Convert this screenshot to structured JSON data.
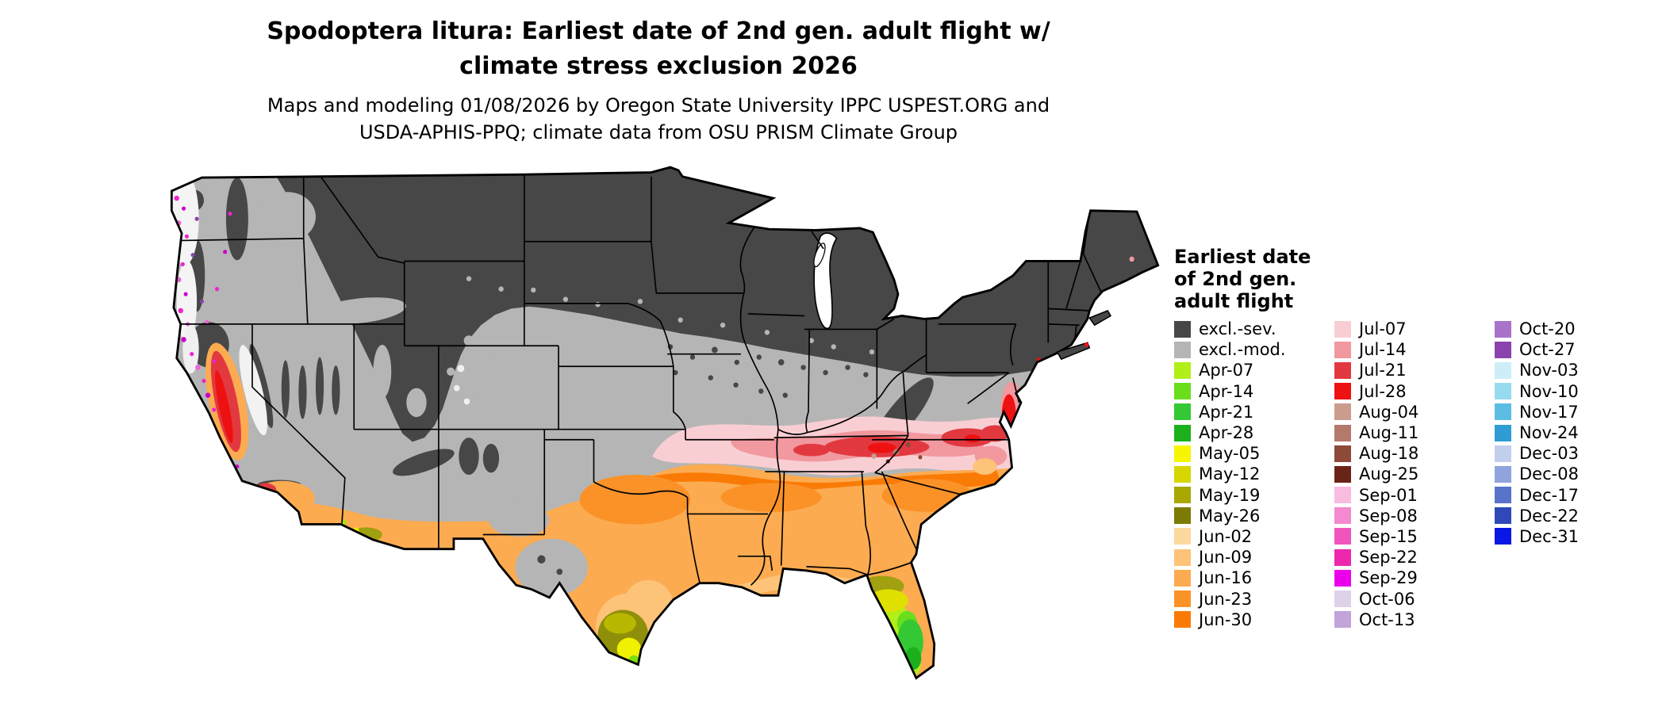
{
  "title": {
    "line1": "Spodoptera litura: Earliest date of 2nd gen. adult flight w/",
    "line2": "climate stress exclusion 2026"
  },
  "subtitle": {
    "line1": "Maps and modeling 01/08/2026 by Oregon State University IPPC USPEST.ORG and",
    "line2": "USDA-APHIS-PPQ; climate data from OSU PRISM Climate Group"
  },
  "map": {
    "region": "Conterminous United States",
    "kind": "raster model output with state boundaries"
  },
  "legend": {
    "title_lines": [
      "Earliest date",
      "of 2nd gen.",
      "adult flight"
    ],
    "columns": [
      {
        "items": [
          {
            "label": "excl.-sev.",
            "color": "#474747"
          },
          {
            "label": "excl.-mod.",
            "color": "#b5b5b5"
          },
          {
            "label": "Apr-07",
            "color": "#b2ee18"
          },
          {
            "label": "Apr-14",
            "color": "#6ade1c"
          },
          {
            "label": "Apr-21",
            "color": "#34c934"
          },
          {
            "label": "Apr-28",
            "color": "#1cb01c"
          },
          {
            "label": "May-05",
            "color": "#f6f600"
          },
          {
            "label": "May-12",
            "color": "#d6d600"
          },
          {
            "label": "May-19",
            "color": "#a8a800"
          },
          {
            "label": "May-26",
            "color": "#7c7c04"
          },
          {
            "label": "Jun-02",
            "color": "#fdd9a0"
          },
          {
            "label": "Jun-09",
            "color": "#fdc378"
          },
          {
            "label": "Jun-16",
            "color": "#fcab50"
          },
          {
            "label": "Jun-23",
            "color": "#fb9228"
          },
          {
            "label": "Jun-30",
            "color": "#f97b06"
          }
        ]
      },
      {
        "items": [
          {
            "label": "Jul-07",
            "color": "#f9ced3"
          },
          {
            "label": "Jul-14",
            "color": "#f2989f"
          },
          {
            "label": "Jul-21",
            "color": "#e23940"
          },
          {
            "label": "Jul-28",
            "color": "#ee1111"
          },
          {
            "label": "Aug-04",
            "color": "#c99c8e"
          },
          {
            "label": "Aug-11",
            "color": "#b3796a"
          },
          {
            "label": "Aug-18",
            "color": "#8e4a39"
          },
          {
            "label": "Aug-25",
            "color": "#6a2417"
          },
          {
            "label": "Sep-01",
            "color": "#f8bce0"
          },
          {
            "label": "Sep-08",
            "color": "#f489cf"
          },
          {
            "label": "Sep-15",
            "color": "#f055bd"
          },
          {
            "label": "Sep-22",
            "color": "#ee28ad"
          },
          {
            "label": "Sep-29",
            "color": "#ec00ec"
          },
          {
            "label": "Oct-06",
            "color": "#ded2e9"
          },
          {
            "label": "Oct-13",
            "color": "#c2a3da"
          }
        ]
      },
      {
        "items": [
          {
            "label": "Oct-20",
            "color": "#a873c8"
          },
          {
            "label": "Oct-27",
            "color": "#8c42ad"
          },
          {
            "label": "Nov-03",
            "color": "#cdeef9"
          },
          {
            "label": "Nov-10",
            "color": "#97dbf1"
          },
          {
            "label": "Nov-17",
            "color": "#5cbde4"
          },
          {
            "label": "Nov-24",
            "color": "#2f9cd3"
          },
          {
            "label": "Dec-03",
            "color": "#c2cfec"
          },
          {
            "label": "Dec-08",
            "color": "#8fa3dc"
          },
          {
            "label": "Dec-17",
            "color": "#5873c9"
          },
          {
            "label": "Dec-22",
            "color": "#2f49b8"
          },
          {
            "label": "Dec-31",
            "color": "#0a16e6"
          }
        ]
      }
    ]
  }
}
